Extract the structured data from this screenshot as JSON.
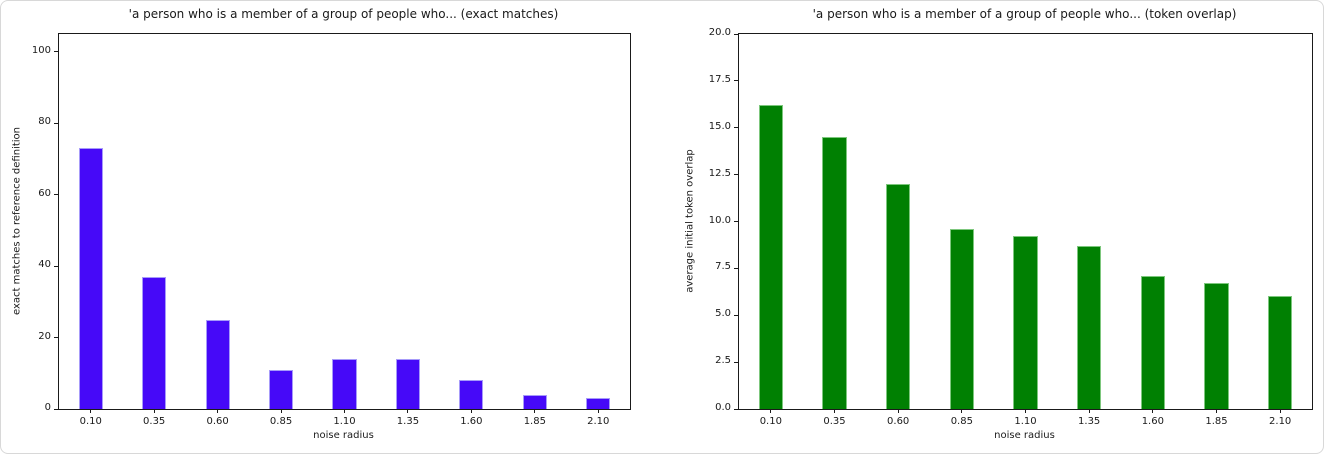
{
  "page": {
    "background": "#ffffff",
    "frame_border": "#d8d8d8",
    "spine_color": "#1a1a1a",
    "text_color": "#1a1a1a"
  },
  "chart_data": [
    {
      "type": "bar",
      "title": "'a person who is a member of a group of people who... (exact matches)",
      "xlabel": "noise radius",
      "ylabel": "exact matches to reference definition",
      "categories": [
        "0.10",
        "0.35",
        "0.60",
        "0.85",
        "1.10",
        "1.35",
        "1.60",
        "1.85",
        "2.10"
      ],
      "values": [
        73,
        37,
        25,
        11,
        14,
        14,
        8,
        4,
        3
      ],
      "bar_color": "#4609f8",
      "bar_edge_color": "#a79bfa",
      "ylim": [
        0,
        105
      ],
      "yticks": [
        {
          "v": 0,
          "label": "0"
        },
        {
          "v": 20,
          "label": "20"
        },
        {
          "v": 40,
          "label": "40"
        },
        {
          "v": 60,
          "label": "60"
        },
        {
          "v": 80,
          "label": "80"
        },
        {
          "v": 100,
          "label": "100"
        }
      ],
      "grid": false,
      "legend": "none"
    },
    {
      "type": "bar",
      "title": "'a person who is a member of a group of people who... (token overlap)",
      "xlabel": "noise radius",
      "ylabel": "average initial token overlap",
      "categories": [
        "0.10",
        "0.35",
        "0.60",
        "0.85",
        "1.10",
        "1.35",
        "1.60",
        "1.85",
        "2.10"
      ],
      "values": [
        16.2,
        14.5,
        12.0,
        9.6,
        9.2,
        8.7,
        7.1,
        6.7,
        6.0
      ],
      "bar_color": "#008002",
      "bar_edge_color": "#7dc77d",
      "ylim": [
        0,
        20
      ],
      "yticks": [
        {
          "v": 0,
          "label": "0.0"
        },
        {
          "v": 2.5,
          "label": "2.5"
        },
        {
          "v": 5,
          "label": "5.0"
        },
        {
          "v": 7.5,
          "label": "7.5"
        },
        {
          "v": 10,
          "label": "10.0"
        },
        {
          "v": 12.5,
          "label": "12.5"
        },
        {
          "v": 15,
          "label": "15.0"
        },
        {
          "v": 17.5,
          "label": "17.5"
        },
        {
          "v": 20,
          "label": "20.0"
        }
      ],
      "grid": false,
      "legend": "none"
    }
  ]
}
